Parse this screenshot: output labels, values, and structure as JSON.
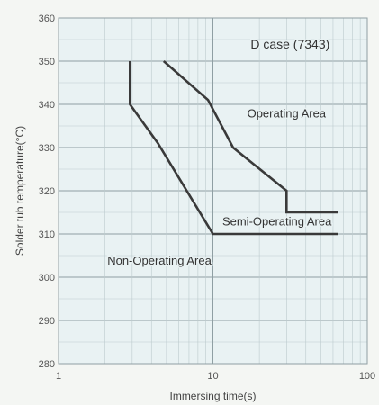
{
  "chart_data": {
    "type": "line",
    "title": "D case (7343)",
    "xlabel": "Immersing time(s)",
    "ylabel": "Solder tub temperature(°C)",
    "x_scale": "log",
    "xlim": [
      1,
      100
    ],
    "ylim": [
      280,
      360
    ],
    "x_major_ticks": [
      1,
      10,
      100
    ],
    "x_tick_labels": [
      "1",
      "10",
      "100"
    ],
    "y_ticks": [
      280,
      290,
      300,
      310,
      320,
      330,
      340,
      350,
      360
    ],
    "y_tick_labels": [
      "280",
      "290",
      "300",
      "310",
      "320",
      "330",
      "340",
      "350",
      "360"
    ],
    "grid": true,
    "series": [
      {
        "color": "#3a3a3a",
        "points": [
          [
            2.9,
            350
          ],
          [
            2.9,
            340
          ],
          [
            4.4,
            331
          ],
          [
            10,
            310
          ],
          [
            65,
            310
          ]
        ]
      },
      {
        "color": "#3a3a3a",
        "points": [
          [
            4.8,
            350
          ],
          [
            9.3,
            341
          ],
          [
            13.5,
            330
          ],
          [
            30,
            320
          ],
          [
            30,
            315
          ],
          [
            65,
            315
          ]
        ]
      }
    ],
    "annotations": [
      {
        "text": "Operating Area",
        "x": 30,
        "y": 338
      },
      {
        "text": "Semi-Operating Area",
        "x": 26,
        "y": 313
      },
      {
        "text": "Non-Operating Area",
        "x": 4.5,
        "y": 304
      }
    ],
    "colors": {
      "plot_background": "#e9f2f3",
      "grid_major": "#8f9fa3",
      "grid_minor": "#bccacd",
      "line": "#3a3a3a"
    }
  }
}
